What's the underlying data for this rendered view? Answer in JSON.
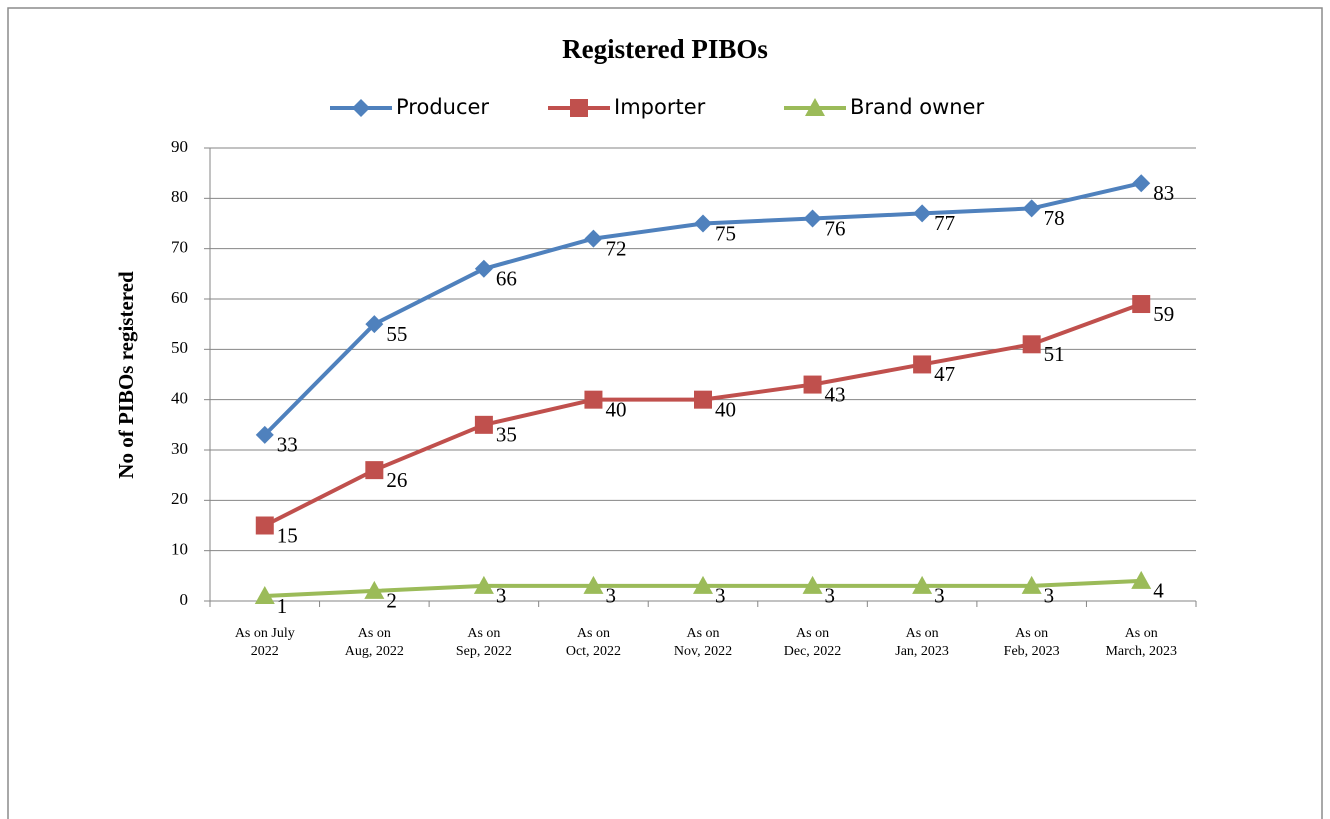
{
  "chart_data": {
    "type": "line",
    "title": "Registered PIBOs",
    "y_label": "No of PIBOs registered",
    "categories": [
      "As on July\n2022",
      "As on\nAug, 2022",
      "As on\nSep, 2022",
      "As on\nOct, 2022",
      "As on\nNov, 2022",
      "As on\nDec, 2022",
      "As on\nJan, 2023",
      "As on\nFeb, 2023",
      "As on\nMarch, 2023"
    ],
    "series": [
      {
        "name": "Producer",
        "color": "#4f81bd",
        "marker": "diamond",
        "values": [
          33,
          55,
          66,
          72,
          75,
          76,
          77,
          78,
          83
        ]
      },
      {
        "name": "Importer",
        "color": "#c0504d",
        "marker": "square",
        "values": [
          15,
          26,
          35,
          40,
          40,
          43,
          47,
          51,
          59
        ]
      },
      {
        "name": "Brand owner",
        "color": "#9bbb59",
        "marker": "triangle",
        "values": [
          1,
          2,
          3,
          3,
          3,
          3,
          3,
          3,
          4
        ]
      }
    ],
    "ylim": [
      0,
      90
    ],
    "yticks": [
      0,
      10,
      20,
      30,
      40,
      50,
      60,
      70,
      80,
      90
    ],
    "grid": true,
    "legend": "top"
  }
}
